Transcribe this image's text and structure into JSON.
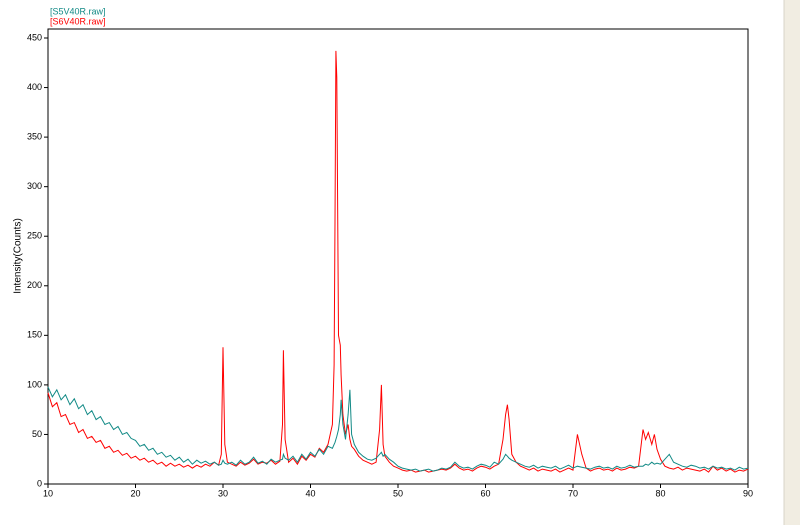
{
  "chart_data": {
    "type": "line",
    "ylabel": "Intensity(Counts)",
    "xlim": [
      10,
      90
    ],
    "ylim": [
      0,
      450
    ],
    "xticks": [
      10,
      20,
      30,
      40,
      50,
      60,
      70,
      80,
      90
    ],
    "yticks": [
      0,
      50,
      100,
      150,
      200,
      250,
      300,
      350,
      400,
      450
    ],
    "grid": false,
    "legend": "top-left",
    "x": [
      10,
      10.5,
      11,
      11.5,
      12,
      12.5,
      13,
      13.5,
      14,
      14.5,
      15,
      15.5,
      16,
      16.5,
      17,
      17.5,
      18,
      18.5,
      19,
      19.5,
      20,
      20.5,
      21,
      21.5,
      22,
      22.5,
      23,
      23.5,
      24,
      24.5,
      25,
      25.5,
      26,
      26.5,
      27,
      27.5,
      28,
      28.5,
      29,
      29.5,
      29.8,
      30,
      30.2,
      30.5,
      31,
      31.5,
      32,
      32.5,
      33,
      33.5,
      34,
      34.5,
      35,
      35.5,
      36,
      36.5,
      36.8,
      36.9,
      37.1,
      37.5,
      38,
      38.5,
      39,
      39.5,
      40,
      40.5,
      41,
      41.5,
      42,
      42.5,
      42.7,
      42.8,
      42.9,
      43,
      43.2,
      43.4,
      43.5,
      43.7,
      44,
      44.3,
      44.5,
      44.7,
      45,
      45.5,
      46,
      46.5,
      47,
      47.5,
      47.9,
      48.1,
      48.3,
      48.5,
      49,
      49.5,
      50,
      50.5,
      51,
      51.5,
      52,
      52.5,
      53,
      53.5,
      54,
      54.5,
      55,
      55.5,
      56,
      56.5,
      57,
      57.5,
      58,
      58.5,
      59,
      59.5,
      60,
      60.5,
      61,
      61.5,
      62,
      62.3,
      62.5,
      62.7,
      63,
      63.5,
      64,
      64.5,
      65,
      65.5,
      66,
      66.5,
      67,
      67.5,
      68,
      68.5,
      69,
      69.5,
      70,
      70.5,
      71,
      71.5,
      72,
      72.5,
      73,
      73.5,
      74,
      74.5,
      75,
      75.5,
      76,
      76.5,
      77,
      77.5,
      78,
      78.3,
      78.6,
      79,
      79.3,
      79.6,
      80,
      80.5,
      81,
      81.5,
      82,
      82.5,
      83,
      83.5,
      84,
      84.5,
      85,
      85.5,
      86,
      86.5,
      87,
      87.5,
      88,
      88.5,
      89,
      89.5,
      90
    ],
    "series": [
      {
        "name": "[S5V40R.raw]",
        "color": "#128a86",
        "values": [
          98,
          88,
          95,
          85,
          90,
          80,
          86,
          76,
          80,
          70,
          74,
          65,
          68,
          60,
          62,
          55,
          58,
          50,
          52,
          46,
          44,
          38,
          40,
          34,
          36,
          30,
          32,
          27,
          29,
          24,
          27,
          22,
          25,
          20,
          24,
          21,
          23,
          20,
          22,
          19,
          20,
          24,
          21,
          20,
          22,
          19,
          24,
          20,
          22,
          27,
          21,
          23,
          20,
          25,
          22,
          24,
          25,
          30,
          26,
          24,
          28,
          22,
          30,
          25,
          32,
          28,
          35,
          30,
          38,
          36,
          40,
          42,
          45,
          48,
          55,
          70,
          85,
          60,
          45,
          70,
          95,
          50,
          40,
          32,
          28,
          25,
          24,
          26,
          30,
          32,
          28,
          30,
          25,
          22,
          18,
          16,
          15,
          14,
          15,
          13,
          14,
          15,
          13,
          14,
          16,
          15,
          17,
          22,
          18,
          16,
          17,
          15,
          18,
          20,
          19,
          17,
          22,
          20,
          25,
          30,
          28,
          26,
          24,
          22,
          20,
          18,
          17,
          19,
          16,
          18,
          17,
          16,
          18,
          15,
          17,
          19,
          16,
          18,
          17,
          16,
          15,
          17,
          18,
          16,
          17,
          15,
          18,
          16,
          17,
          19,
          17,
          18,
          18,
          20,
          19,
          22,
          20,
          21,
          20,
          25,
          30,
          22,
          20,
          18,
          17,
          19,
          18,
          16,
          17,
          15,
          18,
          16,
          17,
          15,
          16,
          14,
          17,
          15,
          16
        ]
      },
      {
        "name": "[S6V40R.raw]",
        "color": "#ff0000",
        "values": [
          92,
          78,
          82,
          68,
          70,
          60,
          62,
          52,
          55,
          46,
          48,
          42,
          44,
          36,
          38,
          32,
          34,
          29,
          31,
          26,
          28,
          24,
          26,
          22,
          24,
          20,
          22,
          18,
          21,
          18,
          20,
          17,
          19,
          16,
          19,
          17,
          20,
          18,
          22,
          19,
          30,
          138,
          40,
          22,
          20,
          18,
          22,
          19,
          21,
          25,
          20,
          22,
          21,
          24,
          20,
          23,
          60,
          135,
          45,
          22,
          26,
          20,
          28,
          24,
          30,
          27,
          36,
          32,
          40,
          60,
          120,
          265,
          437,
          410,
          150,
          140,
          110,
          70,
          50,
          60,
          45,
          38,
          35,
          28,
          24,
          22,
          20,
          22,
          55,
          100,
          40,
          28,
          22,
          18,
          16,
          14,
          13,
          14,
          12,
          13,
          14,
          12,
          13,
          14,
          15,
          14,
          16,
          20,
          16,
          14,
          15,
          13,
          16,
          18,
          17,
          15,
          18,
          20,
          45,
          70,
          80,
          65,
          30,
          22,
          18,
          16,
          14,
          16,
          13,
          15,
          14,
          13,
          15,
          12,
          14,
          16,
          14,
          50,
          30,
          16,
          13,
          15,
          16,
          14,
          15,
          13,
          16,
          14,
          15,
          17,
          16,
          18,
          55,
          45,
          52,
          40,
          50,
          35,
          25,
          18,
          16,
          15,
          17,
          14,
          16,
          15,
          14,
          13,
          15,
          12,
          18,
          14,
          16,
          13,
          15,
          12,
          14,
          13,
          15
        ]
      }
    ]
  }
}
